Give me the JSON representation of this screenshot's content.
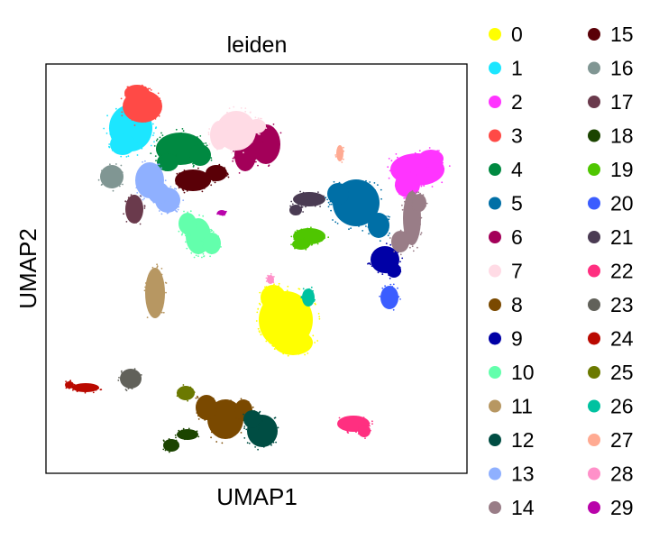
{
  "chart_data": {
    "type": "scatter",
    "title": "leiden",
    "xlabel": "UMAP1",
    "ylabel": "UMAP2",
    "grid": false,
    "ticks": false,
    "legend_position": "right",
    "legend_columns": 2,
    "series": [
      {
        "name": "0",
        "color": "#ffff00"
      },
      {
        "name": "1",
        "color": "#1ce6ff"
      },
      {
        "name": "2",
        "color": "#ff34ff"
      },
      {
        "name": "3",
        "color": "#ff4a46"
      },
      {
        "name": "4",
        "color": "#008941"
      },
      {
        "name": "5",
        "color": "#006fa6"
      },
      {
        "name": "6",
        "color": "#a30059"
      },
      {
        "name": "7",
        "color": "#ffdbe5"
      },
      {
        "name": "8",
        "color": "#7a4900"
      },
      {
        "name": "9",
        "color": "#0000a6"
      },
      {
        "name": "10",
        "color": "#63ffac"
      },
      {
        "name": "11",
        "color": "#b79762"
      },
      {
        "name": "12",
        "color": "#004d43"
      },
      {
        "name": "13",
        "color": "#8fb0ff"
      },
      {
        "name": "14",
        "color": "#997d87"
      },
      {
        "name": "15",
        "color": "#5a0007"
      },
      {
        "name": "16",
        "color": "#809693"
      },
      {
        "name": "17",
        "color": "#6a3a4c"
      },
      {
        "name": "18",
        "color": "#1b4400"
      },
      {
        "name": "19",
        "color": "#4fc601"
      },
      {
        "name": "20",
        "color": "#3b5dff"
      },
      {
        "name": "21",
        "color": "#4a3b53"
      },
      {
        "name": "22",
        "color": "#ff2f80"
      },
      {
        "name": "23",
        "color": "#61615a"
      },
      {
        "name": "24",
        "color": "#ba0900"
      },
      {
        "name": "25",
        "color": "#6b7900"
      },
      {
        "name": "26",
        "color": "#00c2a0"
      },
      {
        "name": "27",
        "color": "#ffaa92"
      },
      {
        "name": "28",
        "color": "#ff90c9"
      },
      {
        "name": "29",
        "color": "#b903aa"
      }
    ]
  }
}
